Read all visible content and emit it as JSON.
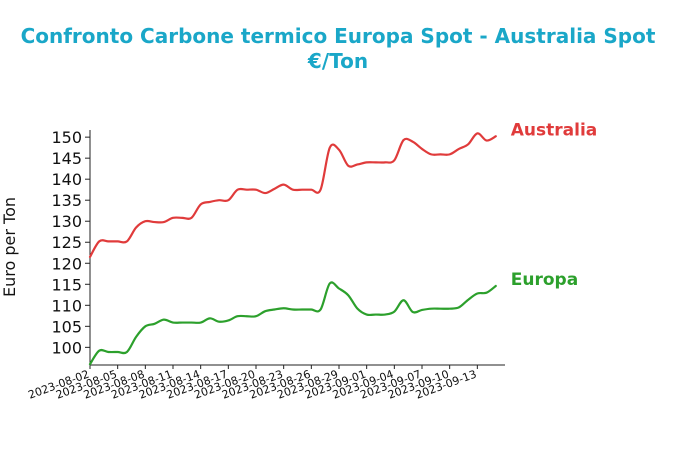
{
  "chart_data": {
    "type": "line",
    "title_lines": [
      "Confronto Carbone termico Europa Spot - Australia Spot",
      "€/Ton"
    ],
    "xlabel": "",
    "ylabel": "Euro per Ton",
    "x_tick_labels": [
      "2023-08-02",
      "2023-08-05",
      "2023-08-08",
      "2023-08-11",
      "2023-08-14",
      "2023-08-17",
      "2023-08-20",
      "2023-08-23",
      "2023-08-26",
      "2023-08-29",
      "2023-09-01",
      "2023-09-04",
      "2023-09-07",
      "2023-09-10",
      "2023-09-13"
    ],
    "y_ticks": [
      100,
      105,
      110,
      115,
      120,
      125,
      130,
      135,
      140,
      145,
      150
    ],
    "ylim": [
      95.8,
      151.7
    ],
    "xlim": [
      "2023-08-02",
      "2023-09-16"
    ],
    "grid": false,
    "legend": "none (labels at line ends)",
    "colors": {
      "title": "#1aa7c8",
      "Australia": "#e03b3b",
      "Europa": "#2ca02c"
    },
    "series": [
      {
        "name": "Australia",
        "color": "#e03b3b",
        "points": [
          [
            "2023-08-02",
            121.5
          ],
          [
            "2023-08-03",
            125.2
          ],
          [
            "2023-08-04",
            125.2
          ],
          [
            "2023-08-05",
            125.2
          ],
          [
            "2023-08-06",
            125.2
          ],
          [
            "2023-08-07",
            128.5
          ],
          [
            "2023-08-08",
            130.0
          ],
          [
            "2023-08-09",
            129.8
          ],
          [
            "2023-08-10",
            129.8
          ],
          [
            "2023-08-11",
            130.8
          ],
          [
            "2023-08-12",
            130.8
          ],
          [
            "2023-08-13",
            130.8
          ],
          [
            "2023-08-14",
            134.0
          ],
          [
            "2023-08-15",
            134.6
          ],
          [
            "2023-08-16",
            135.0
          ],
          [
            "2023-08-17",
            135.0
          ],
          [
            "2023-08-18",
            137.5
          ],
          [
            "2023-08-19",
            137.5
          ],
          [
            "2023-08-20",
            137.5
          ],
          [
            "2023-08-21",
            136.7
          ],
          [
            "2023-08-22",
            137.7
          ],
          [
            "2023-08-23",
            138.7
          ],
          [
            "2023-08-24",
            137.5
          ],
          [
            "2023-08-25",
            137.5
          ],
          [
            "2023-08-26",
            137.5
          ],
          [
            "2023-08-27",
            137.5
          ],
          [
            "2023-08-28",
            147.5
          ],
          [
            "2023-08-29",
            147.0
          ],
          [
            "2023-08-30",
            143.2
          ],
          [
            "2023-08-31",
            143.5
          ],
          [
            "2023-09-01",
            144.0
          ],
          [
            "2023-09-02",
            144.0
          ],
          [
            "2023-09-03",
            144.0
          ],
          [
            "2023-09-04",
            144.5
          ],
          [
            "2023-09-05",
            149.3
          ],
          [
            "2023-09-06",
            148.9
          ],
          [
            "2023-09-07",
            147.2
          ],
          [
            "2023-09-08",
            145.9
          ],
          [
            "2023-09-09",
            145.9
          ],
          [
            "2023-09-10",
            145.9
          ],
          [
            "2023-09-11",
            147.2
          ],
          [
            "2023-09-12",
            148.3
          ],
          [
            "2023-09-13",
            150.9
          ],
          [
            "2023-09-14",
            149.2
          ],
          [
            "2023-09-15",
            150.2
          ]
        ]
      },
      {
        "name": "Europa",
        "color": "#2ca02c",
        "points": [
          [
            "2023-08-02",
            96.0
          ],
          [
            "2023-08-03",
            99.2
          ],
          [
            "2023-08-04",
            98.9
          ],
          [
            "2023-08-05",
            98.9
          ],
          [
            "2023-08-06",
            98.9
          ],
          [
            "2023-08-07",
            102.5
          ],
          [
            "2023-08-08",
            105.0
          ],
          [
            "2023-08-09",
            105.6
          ],
          [
            "2023-08-10",
            106.6
          ],
          [
            "2023-08-11",
            105.9
          ],
          [
            "2023-08-12",
            105.9
          ],
          [
            "2023-08-13",
            105.9
          ],
          [
            "2023-08-14",
            105.9
          ],
          [
            "2023-08-15",
            106.9
          ],
          [
            "2023-08-16",
            106.1
          ],
          [
            "2023-08-17",
            106.4
          ],
          [
            "2023-08-18",
            107.4
          ],
          [
            "2023-08-19",
            107.4
          ],
          [
            "2023-08-20",
            107.4
          ],
          [
            "2023-08-21",
            108.6
          ],
          [
            "2023-08-22",
            109.0
          ],
          [
            "2023-08-23",
            109.3
          ],
          [
            "2023-08-24",
            109.0
          ],
          [
            "2023-08-25",
            109.0
          ],
          [
            "2023-08-26",
            109.0
          ],
          [
            "2023-08-27",
            109.0
          ],
          [
            "2023-08-28",
            115.2
          ],
          [
            "2023-08-29",
            114.0
          ],
          [
            "2023-08-30",
            112.4
          ],
          [
            "2023-08-31",
            109.2
          ],
          [
            "2023-09-01",
            107.8
          ],
          [
            "2023-09-02",
            107.8
          ],
          [
            "2023-09-03",
            107.8
          ],
          [
            "2023-09-04",
            108.5
          ],
          [
            "2023-09-05",
            111.2
          ],
          [
            "2023-09-06",
            108.4
          ],
          [
            "2023-09-07",
            108.9
          ],
          [
            "2023-09-08",
            109.2
          ],
          [
            "2023-09-09",
            109.2
          ],
          [
            "2023-09-10",
            109.2
          ],
          [
            "2023-09-11",
            109.5
          ],
          [
            "2023-09-12",
            111.3
          ],
          [
            "2023-09-13",
            112.8
          ],
          [
            "2023-09-14",
            113.0
          ],
          [
            "2023-09-15",
            114.6
          ]
        ]
      }
    ]
  }
}
